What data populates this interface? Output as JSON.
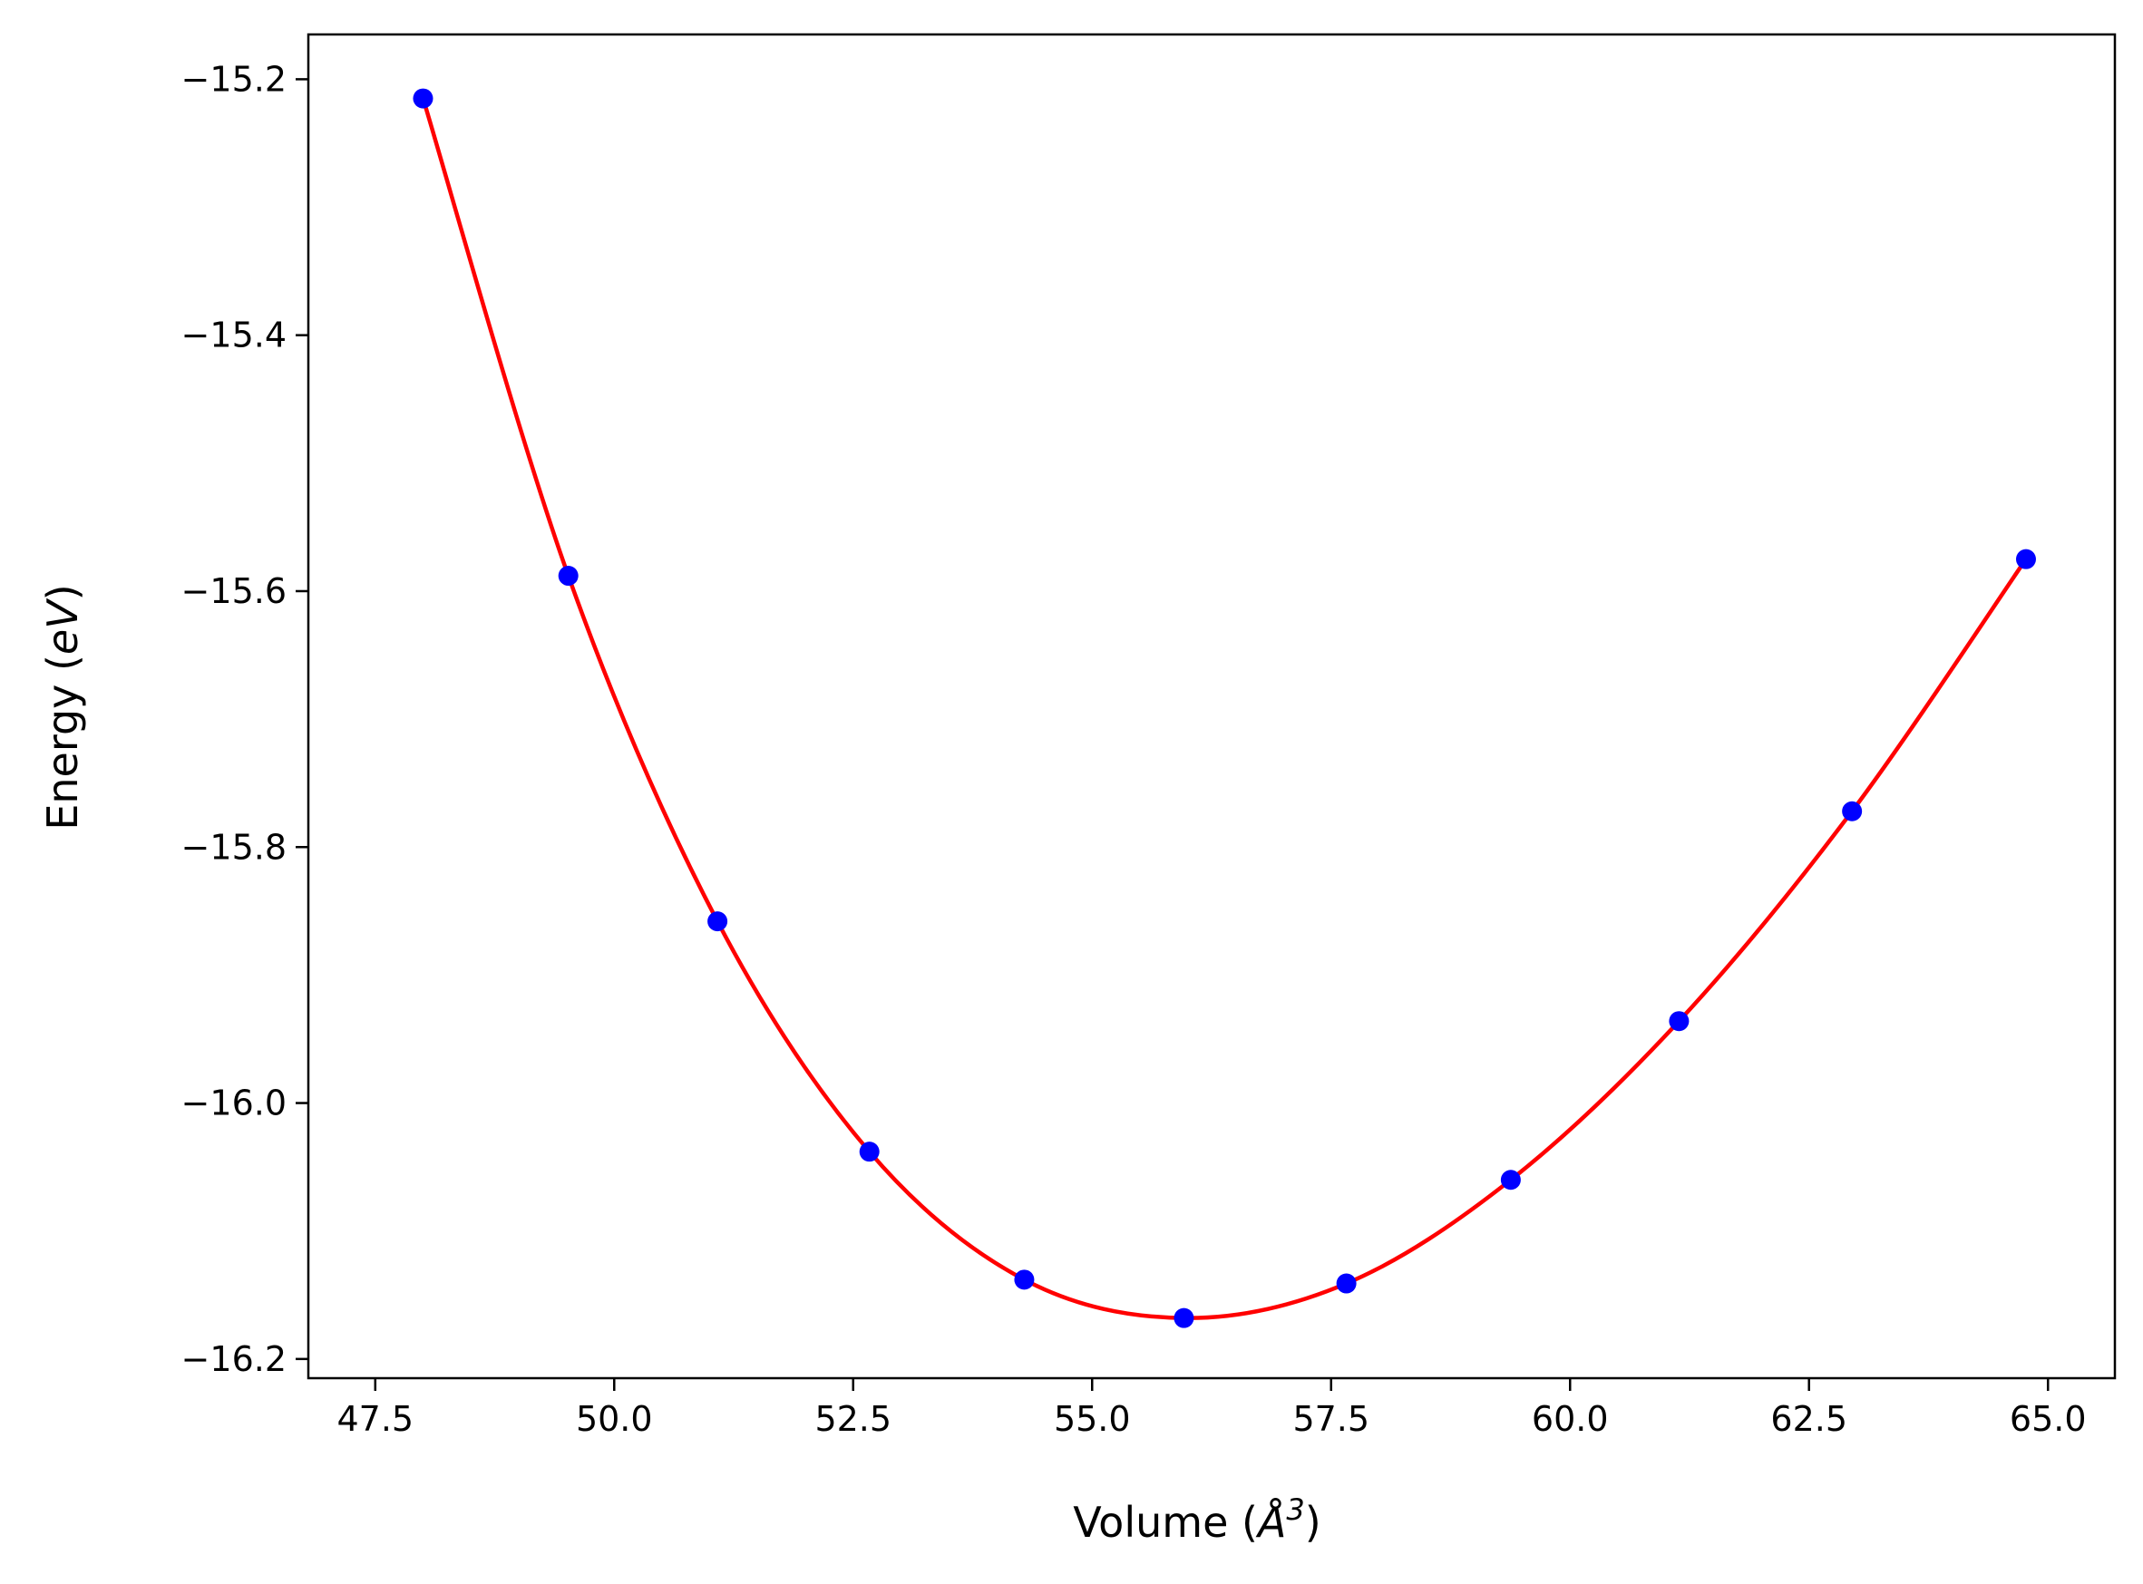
{
  "chart_data": {
    "type": "line",
    "title": "",
    "xlabel": {
      "prefix": "Volume (",
      "symbol": "Å",
      "superscript": "3",
      "suffix": ")"
    },
    "ylabel": {
      "prefix": "Energy (",
      "symbol": "eV",
      "suffix": ")"
    },
    "xlim": [
      46.8,
      65.7
    ],
    "ylim": [
      -16.215,
      -15.165
    ],
    "xticks": [
      47.5,
      50.0,
      52.5,
      55.0,
      57.5,
      60.0,
      62.5,
      65.0
    ],
    "xtick_labels": [
      "47.5",
      "50.0",
      "52.5",
      "55.0",
      "57.5",
      "60.0",
      "62.5",
      "65.0"
    ],
    "yticks": [
      -16.2,
      -16.0,
      -15.8,
      -15.6,
      -15.4,
      -15.2
    ],
    "ytick_labels": [
      "−16.2",
      "−16.0",
      "−15.8",
      "−15.6",
      "−15.4",
      "−15.2"
    ],
    "grid": false,
    "series": [
      {
        "kind": "scatter",
        "color": "#0000ff",
        "x": [
          48.0,
          49.52,
          51.08,
          52.67,
          54.29,
          55.96,
          57.66,
          59.38,
          61.14,
          62.95,
          64.77
        ],
        "y": [
          -15.215,
          -15.588,
          -15.858,
          -16.038,
          -16.138,
          -16.168,
          -16.141,
          -16.06,
          -15.936,
          -15.772,
          -15.575
        ]
      },
      {
        "kind": "line",
        "color": "#ff0000",
        "fit_of": "scatter"
      }
    ]
  }
}
